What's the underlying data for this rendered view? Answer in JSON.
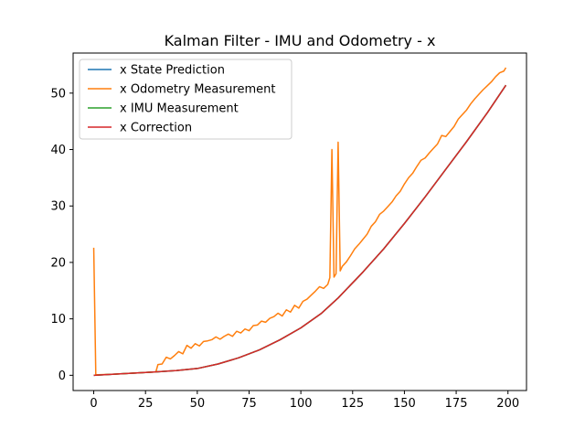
{
  "chart_data": {
    "type": "line",
    "title": "Kalman Filter - IMU and Odometry - x",
    "xlabel": "",
    "ylabel": "",
    "xlim": [
      -9.95,
      208.95
    ],
    "ylim": [
      -2.7,
      57.1
    ],
    "xticks": [
      0,
      25,
      50,
      75,
      100,
      125,
      150,
      175,
      200
    ],
    "yticks": [
      0,
      10,
      20,
      30,
      40,
      50
    ],
    "grid": false,
    "legend": "upper-left",
    "series": [
      {
        "name": "x State Prediction",
        "color": "#1f77b4",
        "x": [
          0,
          10,
          20,
          30,
          40,
          50,
          60,
          70,
          80,
          90,
          100,
          110,
          118,
          130,
          140,
          150,
          160,
          170,
          180,
          190,
          199
        ],
        "y": [
          0,
          0.2,
          0.4,
          0.6,
          0.85,
          1.2,
          2.0,
          3.1,
          4.5,
          6.3,
          8.4,
          11.0,
          13.7,
          18.3,
          22.4,
          26.9,
          31.6,
          36.5,
          41.4,
          46.5,
          51.4
        ]
      },
      {
        "name": "x Odometry Measurement",
        "color": "#ff7f0e",
        "x": [
          0,
          1,
          2,
          10,
          20,
          30,
          31,
          33,
          35,
          37,
          39,
          41,
          43,
          45,
          47,
          49,
          51,
          53,
          55,
          57,
          59,
          61,
          63,
          65,
          67,
          69,
          71,
          73,
          75,
          77,
          79,
          81,
          83,
          85,
          87,
          89,
          91,
          93,
          95,
          97,
          99,
          101,
          103,
          105,
          107,
          109,
          111,
          113,
          114,
          115,
          116,
          117,
          118,
          119,
          120,
          122,
          124,
          126,
          128,
          130,
          132,
          134,
          136,
          138,
          140,
          142,
          144,
          146,
          148,
          150,
          152,
          154,
          156,
          158,
          160,
          162,
          164,
          166,
          168,
          170,
          172,
          174,
          176,
          178,
          180,
          182,
          184,
          186,
          188,
          190,
          192,
          194,
          196,
          198,
          199
        ],
        "y": [
          22.6,
          0.1,
          0.1,
          0.2,
          0.4,
          0.6,
          1.9,
          2.0,
          3.2,
          2.9,
          3.5,
          4.2,
          3.8,
          5.3,
          4.8,
          5.6,
          5.2,
          6.0,
          6.1,
          6.3,
          6.8,
          6.4,
          6.9,
          7.3,
          6.9,
          7.8,
          7.5,
          8.2,
          7.9,
          8.8,
          8.9,
          9.6,
          9.4,
          10.1,
          10.4,
          11.0,
          10.5,
          11.6,
          11.2,
          12.4,
          11.9,
          13.1,
          13.5,
          14.2,
          14.9,
          15.7,
          15.4,
          16.1,
          17.3,
          40.0,
          17.4,
          18.0,
          41.3,
          18.5,
          19.3,
          20.1,
          21.2,
          22.4,
          23.2,
          24.1,
          25.0,
          26.4,
          27.2,
          28.5,
          29.1,
          29.9,
          30.7,
          31.8,
          32.6,
          33.9,
          35.0,
          35.8,
          37.0,
          38.1,
          38.5,
          39.4,
          40.2,
          41.0,
          42.5,
          42.3,
          43.2,
          44.1,
          45.4,
          46.2,
          47.0,
          48.1,
          49.0,
          49.8,
          50.6,
          51.3,
          52.0,
          52.9,
          53.6,
          53.9,
          54.5
        ]
      },
      {
        "name": "x IMU Measurement",
        "color": "#2ca02c",
        "x": [
          0,
          10,
          20,
          30,
          40,
          50,
          60,
          70,
          80,
          90,
          100,
          110,
          118,
          130,
          140,
          150,
          160,
          170,
          180,
          190,
          199
        ],
        "y": [
          0,
          0.2,
          0.4,
          0.6,
          0.85,
          1.2,
          2.0,
          3.1,
          4.5,
          6.3,
          8.4,
          11.0,
          13.7,
          18.3,
          22.4,
          26.9,
          31.6,
          36.5,
          41.4,
          46.5,
          51.4
        ]
      },
      {
        "name": "x Correction",
        "color": "#d62728",
        "x": [
          0,
          10,
          20,
          30,
          40,
          50,
          60,
          70,
          80,
          90,
          100,
          110,
          118,
          130,
          140,
          150,
          160,
          170,
          180,
          190,
          199
        ],
        "y": [
          0,
          0.2,
          0.4,
          0.6,
          0.85,
          1.2,
          2.0,
          3.1,
          4.5,
          6.3,
          8.4,
          11.0,
          13.7,
          18.3,
          22.4,
          26.9,
          31.6,
          36.5,
          41.4,
          46.5,
          51.4
        ]
      }
    ]
  }
}
